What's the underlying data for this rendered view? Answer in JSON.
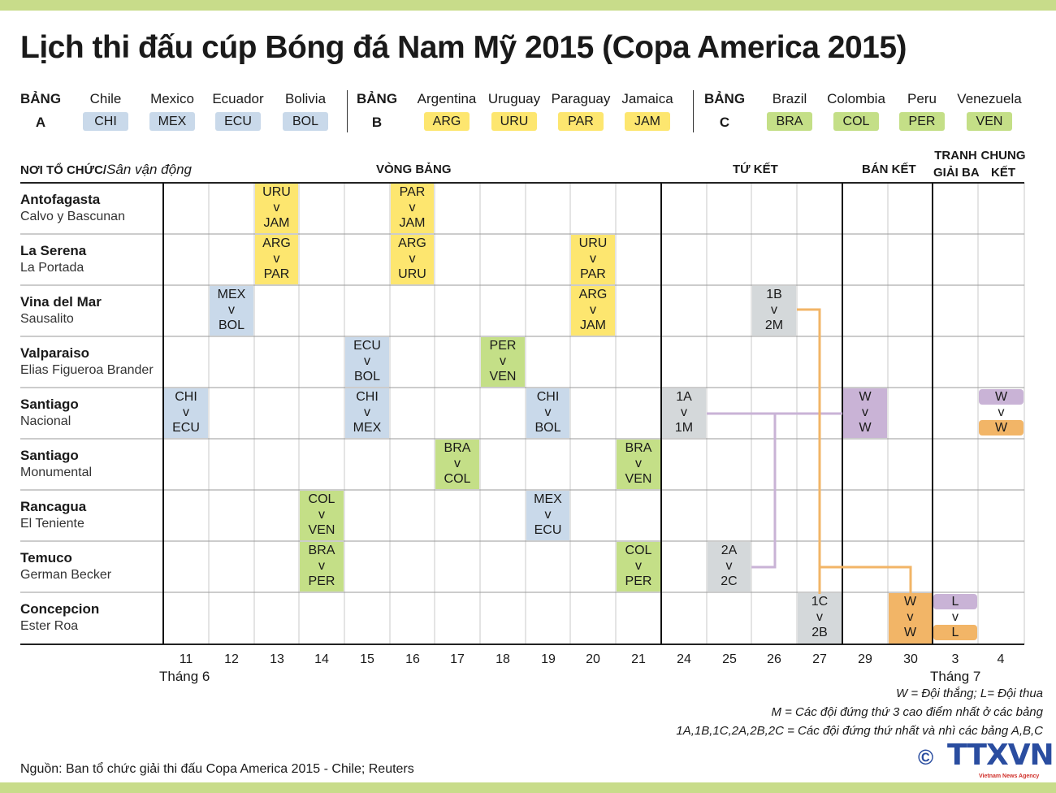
{
  "title": "Lịch thi đấu cúp Bóng đá Nam Mỹ 2015 (Copa America 2015)",
  "groups": [
    {
      "label1": "BẢNG",
      "label2": "A",
      "teams": [
        {
          "name": "Chile",
          "code": "CHI"
        },
        {
          "name": "Mexico",
          "code": "MEX"
        },
        {
          "name": "Ecuador",
          "code": "ECU"
        },
        {
          "name": "Bolivia",
          "code": "BOL"
        }
      ],
      "color": "#c9d9ea"
    },
    {
      "label1": "BẢNG",
      "label2": "B",
      "teams": [
        {
          "name": "Argentina",
          "code": "ARG"
        },
        {
          "name": "Uruguay",
          "code": "URU"
        },
        {
          "name": "Paraguay",
          "code": "PAR"
        },
        {
          "name": "Jamaica",
          "code": "JAM"
        }
      ],
      "color": "#fde66f"
    },
    {
      "label1": "BẢNG",
      "label2": "C",
      "teams": [
        {
          "name": "Brazil",
          "code": "BRA"
        },
        {
          "name": "Colombia",
          "code": "COL"
        },
        {
          "name": "Peru",
          "code": "PER"
        },
        {
          "name": "Venezuela",
          "code": "VEN"
        }
      ],
      "color": "#c4df87"
    }
  ],
  "colors": {
    "A": "#c9d9ea",
    "B": "#fde66f",
    "C": "#c4df87",
    "K": "#d4d8da",
    "P": "#c9b3d6",
    "O": "#f2b567"
  },
  "headers": {
    "venue": "NƠI TỔ CHỨC/",
    "stadium": "Sân vận động",
    "group_stage": "VÒNG BẢNG",
    "quarter": "TỨ KẾT",
    "semi": "BÁN KẾT",
    "third1": "TRANH",
    "third2": "GIẢI BA",
    "final1": "CHUNG",
    "final2": "KẾT"
  },
  "venues": [
    {
      "city": "Antofagasta",
      "stadium": "Calvo y Bascunan"
    },
    {
      "city": "La Serena",
      "stadium": "La Portada"
    },
    {
      "city": "Vina del Mar",
      "stadium": "Sausalito"
    },
    {
      "city": "Valparaiso",
      "stadium": "Elias Figueroa Brander"
    },
    {
      "city": "Santiago",
      "stadium": "Nacional"
    },
    {
      "city": "Santiago",
      "stadium": "Monumental"
    },
    {
      "city": "Rancagua",
      "stadium": "El Teniente"
    },
    {
      "city": "Temuco",
      "stadium": "German Becker"
    },
    {
      "city": "Concepcion",
      "stadium": "Ester Roa"
    }
  ],
  "days": [
    "11",
    "12",
    "13",
    "14",
    "15",
    "16",
    "17",
    "18",
    "19",
    "20",
    "21",
    "24",
    "25",
    "26",
    "27",
    "29",
    "30",
    "3",
    "4"
  ],
  "months": {
    "june": "Tháng 6",
    "july": "Tháng 7"
  },
  "matches": [
    {
      "venue": 0,
      "day": 2,
      "home": "URU",
      "away": "JAM",
      "color": "B"
    },
    {
      "venue": 0,
      "day": 5,
      "home": "PAR",
      "away": "JAM",
      "color": "B"
    },
    {
      "venue": 1,
      "day": 2,
      "home": "ARG",
      "away": "PAR",
      "color": "B"
    },
    {
      "venue": 1,
      "day": 5,
      "home": "ARG",
      "away": "URU",
      "color": "B"
    },
    {
      "venue": 1,
      "day": 9,
      "home": "URU",
      "away": "PAR",
      "color": "B"
    },
    {
      "venue": 2,
      "day": 1,
      "home": "MEX",
      "away": "BOL",
      "color": "A"
    },
    {
      "venue": 2,
      "day": 9,
      "home": "ARG",
      "away": "JAM",
      "color": "B"
    },
    {
      "venue": 2,
      "day": 13,
      "home": "1B",
      "away": "2M",
      "color": "K"
    },
    {
      "venue": 3,
      "day": 4,
      "home": "ECU",
      "away": "BOL",
      "color": "A"
    },
    {
      "venue": 3,
      "day": 7,
      "home": "PER",
      "away": "VEN",
      "color": "C"
    },
    {
      "venue": 4,
      "day": 0,
      "home": "CHI",
      "away": "ECU",
      "color": "A"
    },
    {
      "venue": 4,
      "day": 4,
      "home": "CHI",
      "away": "MEX",
      "color": "A"
    },
    {
      "venue": 4,
      "day": 8,
      "home": "CHI",
      "away": "BOL",
      "color": "A"
    },
    {
      "venue": 4,
      "day": 11,
      "home": "1A",
      "away": "1M",
      "color": "K"
    },
    {
      "venue": 4,
      "day": 15,
      "home": "W",
      "away": "W",
      "color": "P"
    },
    {
      "venue": 4,
      "day": 18,
      "home": "W",
      "away": "W",
      "color": "P",
      "away_color": "O",
      "split": true
    },
    {
      "venue": 5,
      "day": 6,
      "home": "BRA",
      "away": "COL",
      "color": "C"
    },
    {
      "venue": 5,
      "day": 10,
      "home": "BRA",
      "away": "VEN",
      "color": "C"
    },
    {
      "venue": 6,
      "day": 3,
      "home": "COL",
      "away": "VEN",
      "color": "C"
    },
    {
      "venue": 6,
      "day": 8,
      "home": "MEX",
      "away": "ECU",
      "color": "A"
    },
    {
      "venue": 7,
      "day": 3,
      "home": "BRA",
      "away": "PER",
      "color": "C"
    },
    {
      "venue": 7,
      "day": 10,
      "home": "COL",
      "away": "PER",
      "color": "C"
    },
    {
      "venue": 7,
      "day": 12,
      "home": "2A",
      "away": "2C",
      "color": "K"
    },
    {
      "venue": 8,
      "day": 14,
      "home": "1C",
      "away": "2B",
      "color": "K"
    },
    {
      "venue": 8,
      "day": 16,
      "home": "W",
      "away": "W",
      "color": "O"
    },
    {
      "venue": 8,
      "day": 17,
      "home": "L",
      "away": "L",
      "color": "P",
      "away_color": "O",
      "split": true
    }
  ],
  "vs": "v",
  "notes": [
    "W = Đội thắng; L= Đội thua",
    "M = Các đội đứng thứ 3 cao điểm nhất ở các bảng",
    "1A,1B,1C,2A,2B,2C = Các đội đứng thứ nhất và nhì các bảng A,B,C"
  ],
  "source": "Nguồn: Ban tổ chức giải thi đấu Copa America 2015 - Chile; Reuters",
  "logo": {
    "copyright": "©",
    "text": "TTXVN",
    "sub": "Vietnam News Agency",
    "color": "#2a4da0"
  }
}
